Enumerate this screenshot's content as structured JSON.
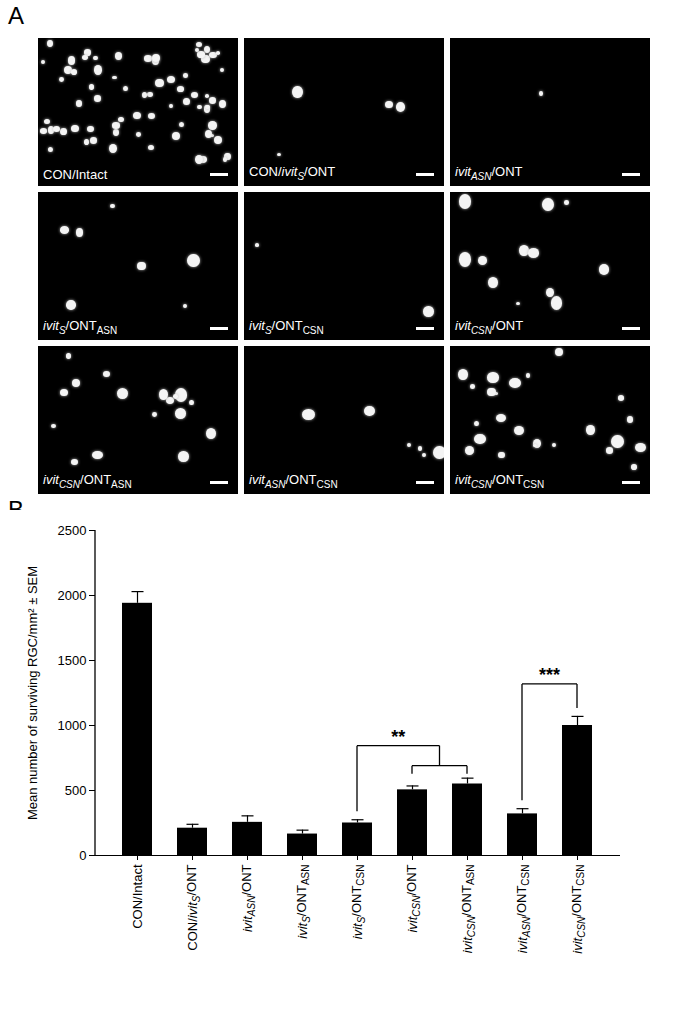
{
  "panel_a": {
    "label": "A",
    "image_labels": [
      [
        {
          "text": "CON/Intact"
        }
      ],
      [
        {
          "text": "CON/"
        },
        {
          "text": "ivit",
          "italic": true
        },
        {
          "text": "S",
          "italic": true,
          "sub": true
        },
        {
          "text": "/ONT"
        }
      ],
      [
        {
          "text": "ivit",
          "italic": true
        },
        {
          "text": "ASN",
          "italic": true,
          "sub": true
        },
        {
          "text": "/ONT"
        }
      ],
      [
        {
          "text": "ivit",
          "italic": true
        },
        {
          "text": "S",
          "italic": true,
          "sub": true
        },
        {
          "text": "/ONT"
        },
        {
          "text": "ASN",
          "sub": true
        }
      ],
      [
        {
          "text": "ivit",
          "italic": true
        },
        {
          "text": "S",
          "italic": true,
          "sub": true
        },
        {
          "text": "/ONT"
        },
        {
          "text": "CSN",
          "sub": true
        }
      ],
      [
        {
          "text": "ivit",
          "italic": true
        },
        {
          "text": "CSN",
          "italic": true,
          "sub": true
        },
        {
          "text": "/ONT"
        }
      ],
      [
        {
          "text": "ivit",
          "italic": true
        },
        {
          "text": "CSN",
          "italic": true,
          "sub": true
        },
        {
          "text": "/ONT"
        },
        {
          "text": "ASN",
          "sub": true
        }
      ],
      [
        {
          "text": "ivit",
          "italic": true
        },
        {
          "text": "ASN",
          "italic": true,
          "sub": true
        },
        {
          "text": "/ONT"
        },
        {
          "text": "CSN",
          "sub": true
        }
      ],
      [
        {
          "text": "ivit",
          "italic": true
        },
        {
          "text": "CSN",
          "italic": true,
          "sub": true
        },
        {
          "text": "/ONT"
        },
        {
          "text": "CSN",
          "sub": true
        }
      ]
    ]
  },
  "chart_data": {
    "type": "bar",
    "panel_label": "B",
    "ylabel": "Mean number of surviving RGC/mm² ± SEM",
    "categories": [
      [
        {
          "text": "CON/Intact"
        }
      ],
      [
        {
          "text": "CON/"
        },
        {
          "text": "ivit",
          "italic": true
        },
        {
          "text": "S",
          "italic": true,
          "sub": true
        },
        {
          "text": "/ONT"
        }
      ],
      [
        {
          "text": "ivit",
          "italic": true
        },
        {
          "text": "ASN",
          "italic": true,
          "sub": true
        },
        {
          "text": "/ONT"
        }
      ],
      [
        {
          "text": "ivit",
          "italic": true
        },
        {
          "text": "S",
          "italic": true,
          "sub": true
        },
        {
          "text": "/ONT"
        },
        {
          "text": "ASN",
          "sub": true
        }
      ],
      [
        {
          "text": "ivit",
          "italic": true
        },
        {
          "text": "S",
          "italic": true,
          "sub": true
        },
        {
          "text": "/ONT"
        },
        {
          "text": "CSN",
          "sub": true
        }
      ],
      [
        {
          "text": "ivit",
          "italic": true
        },
        {
          "text": "CSN",
          "italic": true,
          "sub": true
        },
        {
          "text": "/ONT"
        }
      ],
      [
        {
          "text": "ivit",
          "italic": true
        },
        {
          "text": "CSN",
          "italic": true,
          "sub": true
        },
        {
          "text": "/ONT"
        },
        {
          "text": "ASN",
          "sub": true
        }
      ],
      [
        {
          "text": "ivit",
          "italic": true
        },
        {
          "text": "ASN",
          "italic": true,
          "sub": true
        },
        {
          "text": "/ONT"
        },
        {
          "text": "CSN",
          "sub": true
        }
      ],
      [
        {
          "text": "ivit",
          "italic": true
        },
        {
          "text": "CSN",
          "italic": true,
          "sub": true
        },
        {
          "text": "/ONT"
        },
        {
          "text": "CSN",
          "sub": true
        }
      ]
    ],
    "values": [
      1940,
      210,
      255,
      165,
      250,
      505,
      550,
      320,
      1000
    ],
    "errors": [
      90,
      30,
      50,
      30,
      25,
      30,
      45,
      40,
      70
    ],
    "color": "#000000",
    "ylim": [
      0,
      2500
    ],
    "yticks": [
      0,
      500,
      1000,
      1500,
      2000,
      2500
    ],
    "significance": [
      {
        "from": [
          4
        ],
        "to": [
          5,
          6
        ],
        "label": "**"
      },
      {
        "from": [
          7
        ],
        "to": [
          8
        ],
        "label": "***"
      }
    ]
  }
}
